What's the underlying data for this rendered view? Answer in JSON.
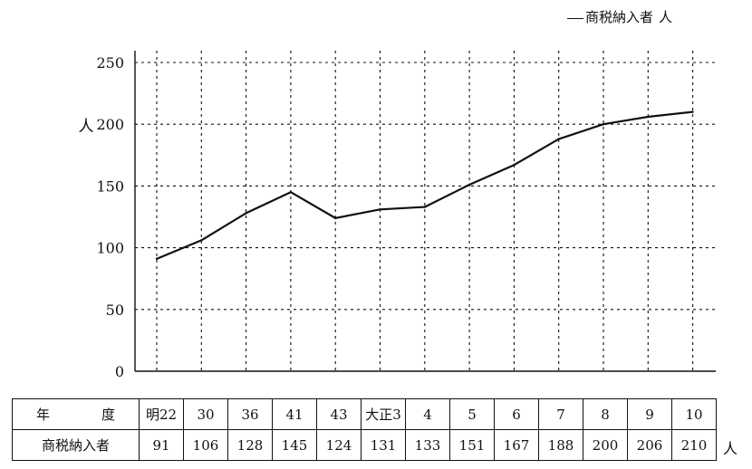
{
  "legend": {
    "label": "商税納入者",
    "unit": "人"
  },
  "chart_data": {
    "type": "line",
    "ylabel": "人",
    "ylim": [
      0,
      250
    ],
    "yticks": [
      0,
      50,
      100,
      150,
      200,
      250
    ],
    "categories": [
      "明22",
      "30",
      "36",
      "41",
      "43",
      "大正3",
      "4",
      "5",
      "6",
      "7",
      "8",
      "9",
      "10"
    ],
    "series": [
      {
        "name": "商税納入者",
        "values": [
          91,
          106,
          128,
          145,
          124,
          131,
          133,
          151,
          167,
          188,
          200,
          206,
          210
        ]
      }
    ],
    "grid": true
  },
  "table": {
    "header_row_label_left": "年",
    "header_row_label_right": "度",
    "value_row_label": "商税納入者",
    "unit": "人"
  }
}
